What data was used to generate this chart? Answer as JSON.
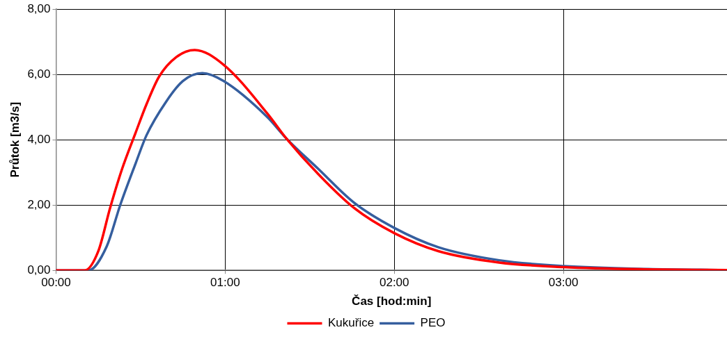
{
  "chart_data": {
    "type": "line",
    "xlabel": "Čas [hod:min]",
    "ylabel": "Průtok [m3/s]",
    "xlim": [
      0,
      3.967
    ],
    "ylim": [
      0,
      8
    ],
    "xticks": [
      {
        "value": 0,
        "label": "00:00"
      },
      {
        "value": 1,
        "label": "01:00"
      },
      {
        "value": 2,
        "label": "02:00"
      },
      {
        "value": 3,
        "label": "03:00"
      }
    ],
    "yticks": [
      {
        "value": 0,
        "label": "0,00"
      },
      {
        "value": 2,
        "label": "2,00"
      },
      {
        "value": 4,
        "label": "4,00"
      },
      {
        "value": 6,
        "label": "6,00"
      },
      {
        "value": 8,
        "label": "8,00"
      }
    ],
    "grid": true,
    "legend": "bottom",
    "marker": "none",
    "line_style": "solid",
    "series": [
      {
        "name": "Kukuřice",
        "color": "#ff0000",
        "x": [
          0,
          0.17,
          0.25,
          0.32,
          0.39,
          0.47,
          0.535,
          0.61,
          0.71,
          0.82,
          0.99,
          1.25,
          1.36,
          1.55,
          1.76,
          2.0,
          2.26,
          2.62,
          3.0,
          3.5,
          3.967
        ],
        "values": [
          0,
          0,
          0.59,
          1.92,
          3.1,
          4.21,
          5.09,
          5.94,
          6.53,
          6.75,
          6.3,
          4.8,
          4.05,
          2.95,
          1.92,
          1.14,
          0.59,
          0.24,
          0.1,
          0.03,
          0.01
        ]
      },
      {
        "name": "PEO",
        "color": "#355e9e",
        "x": [
          0,
          0.19,
          0.3,
          0.38,
          0.47,
          0.535,
          0.65,
          0.75,
          0.865,
          0.99,
          1.25,
          1.36,
          1.55,
          1.76,
          2.0,
          2.26,
          2.62,
          3.0,
          3.5,
          3.967
        ],
        "values": [
          0,
          0,
          0.74,
          2.01,
          3.27,
          4.14,
          5.16,
          5.8,
          6.04,
          5.8,
          4.69,
          4.05,
          3.11,
          2.08,
          1.3,
          0.71,
          0.31,
          0.13,
          0.04,
          0.01
        ]
      }
    ]
  }
}
